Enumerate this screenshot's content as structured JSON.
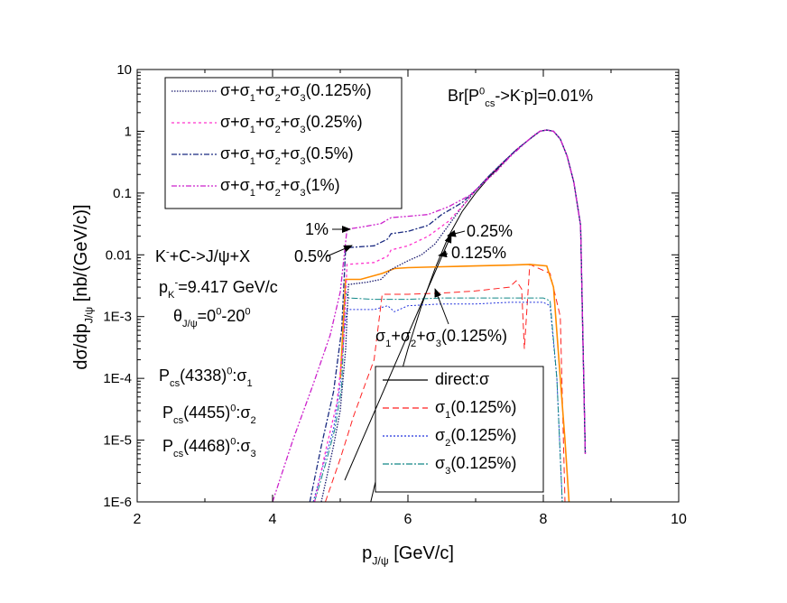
{
  "chart_data": {
    "type": "line",
    "y_scale": "log",
    "xlim": [
      2,
      10
    ],
    "ylim": [
      1e-06,
      10
    ],
    "x_ticks": [
      "2",
      "4",
      "6",
      "8",
      "10"
    ],
    "y_ticks": [
      "1E-6",
      "1E-5",
      "1E-4",
      "1E-3",
      "0.01",
      "0.1",
      "1",
      "10"
    ],
    "xlabel": {
      "main": "p",
      "sub": "J/ψ",
      "rest": " [GeV/c]"
    },
    "ylabel": {
      "main": "dσ/dp",
      "sub": "J/ψ",
      "rest": " [nb/(GeV/c)]"
    },
    "legend_top": [
      {
        "parts": [
          [
            "σ+σ",
            ""
          ],
          [
            "1",
            "sub"
          ],
          [
            "+σ",
            ""
          ],
          [
            "2",
            "sub"
          ],
          [
            "+σ",
            ""
          ],
          [
            "3",
            "sub"
          ],
          [
            "(0.125%)",
            ""
          ]
        ],
        "color": "#1a1a6e",
        "dash": "1.5,1.5"
      },
      {
        "parts": [
          [
            "σ+σ",
            ""
          ],
          [
            "1",
            "sub"
          ],
          [
            "+σ",
            ""
          ],
          [
            "2",
            "sub"
          ],
          [
            "+σ",
            ""
          ],
          [
            "3",
            "sub"
          ],
          [
            "(0.25%)",
            ""
          ]
        ],
        "color": "#ff33cc",
        "dash": "3,3"
      },
      {
        "parts": [
          [
            "σ+σ",
            ""
          ],
          [
            "1",
            "sub"
          ],
          [
            "+σ",
            ""
          ],
          [
            "2",
            "sub"
          ],
          [
            "+σ",
            ""
          ],
          [
            "3",
            "sub"
          ],
          [
            "(0.5%)",
            ""
          ]
        ],
        "color": "#1a2a80",
        "dash": "6,2,2,2"
      },
      {
        "parts": [
          [
            "σ+σ",
            ""
          ],
          [
            "1",
            "sub"
          ],
          [
            "+σ",
            ""
          ],
          [
            "2",
            "sub"
          ],
          [
            "+σ",
            ""
          ],
          [
            "3",
            "sub"
          ],
          [
            "(1%)",
            ""
          ]
        ],
        "color": "#cc22cc",
        "dash": "6,2,2,2,2,2"
      }
    ],
    "legend_bottom": [
      {
        "parts": [
          [
            "direct:σ",
            ""
          ]
        ],
        "color": "#000000",
        "dash": ""
      },
      {
        "parts": [
          [
            "σ",
            ""
          ],
          [
            "1",
            "sub"
          ],
          [
            "(0.125%)",
            ""
          ]
        ],
        "color": "#ff2222",
        "dash": "7,4"
      },
      {
        "parts": [
          [
            "σ",
            ""
          ],
          [
            "2",
            "sub"
          ],
          [
            "(0.125%)",
            ""
          ]
        ],
        "color": "#2233dd",
        "dash": "2,2"
      },
      {
        "parts": [
          [
            "σ",
            ""
          ],
          [
            "3",
            "sub"
          ],
          [
            "(0.125%)",
            ""
          ]
        ],
        "color": "#118888",
        "dash": "7,2,2,2"
      }
    ],
    "annotations": {
      "branching": [
        [
          "Br[P",
          ""
        ],
        [
          "0",
          "sup"
        ],
        [
          "cs",
          "sub"
        ],
        [
          "->K",
          ""
        ],
        [
          "-",
          "sup"
        ],
        [
          "p]=0.01%",
          ""
        ]
      ],
      "reaction": [
        [
          "K",
          ""
        ],
        [
          "-",
          "sup"
        ],
        [
          "+C->J/ψ+X",
          ""
        ]
      ],
      "momentum": [
        [
          "p",
          ""
        ],
        [
          "K",
          "sub"
        ],
        [
          "-",
          "sup"
        ],
        [
          "=9.417 GeV/c",
          ""
        ]
      ],
      "angle": [
        [
          "θ",
          ""
        ],
        [
          "J/ψ",
          "sub"
        ],
        [
          "=0",
          ""
        ],
        [
          "0",
          "sup"
        ],
        [
          "-20",
          ""
        ],
        [
          "0",
          "sup"
        ]
      ],
      "state1": [
        [
          "P",
          ""
        ],
        [
          "cs",
          "sub"
        ],
        [
          "(4338)",
          ""
        ],
        [
          "0",
          "sup"
        ],
        [
          ":σ",
          ""
        ],
        [
          "1",
          "sub"
        ]
      ],
      "state2": [
        [
          "P",
          ""
        ],
        [
          "cs",
          "sub"
        ],
        [
          "(4455)",
          ""
        ],
        [
          "0",
          "sup"
        ],
        [
          ":σ",
          ""
        ],
        [
          "2",
          "sub"
        ]
      ],
      "state3": [
        [
          "P",
          ""
        ],
        [
          "cs",
          "sub"
        ],
        [
          "(4468)",
          ""
        ],
        [
          "0",
          "sup"
        ],
        [
          ":σ",
          ""
        ],
        [
          "3",
          "sub"
        ]
      ],
      "label_1pct": "1%",
      "label_05pct": "0.5%",
      "label_025pct": "0.25%",
      "label_0125pct": "0.125%",
      "sum_label": [
        [
          "σ",
          ""
        ],
        [
          "1",
          "sub"
        ],
        [
          "+σ",
          ""
        ],
        [
          "2",
          "sub"
        ],
        [
          "+σ",
          ""
        ],
        [
          "3",
          "sub"
        ],
        [
          "(0.125%)",
          ""
        ]
      ]
    },
    "series": [
      {
        "name": "direct:σ",
        "color": "#000000",
        "dash": "",
        "width": 1.0,
        "points": [
          [
            5.45,
            1e-06
          ],
          [
            5.6,
            5e-06
          ],
          [
            5.8,
            5e-05
          ],
          [
            6.0,
            0.0003
          ],
          [
            6.2,
            0.0015
          ],
          [
            6.4,
            0.006
          ],
          [
            6.6,
            0.02
          ],
          [
            6.8,
            0.05
          ],
          [
            7.0,
            0.1
          ],
          [
            7.2,
            0.18
          ],
          [
            7.4,
            0.3
          ],
          [
            7.6,
            0.5
          ],
          [
            7.8,
            0.75
          ],
          [
            7.95,
            1.0
          ],
          [
            8.05,
            1.05
          ],
          [
            8.15,
            1.0
          ],
          [
            8.25,
            0.75
          ],
          [
            8.35,
            0.4
          ],
          [
            8.45,
            0.15
          ],
          [
            8.55,
            0.03
          ],
          [
            8.62,
            6e-06
          ]
        ]
      },
      {
        "name": "σ1(0.125%)",
        "color": "#ff2222",
        "dash": "7,4",
        "width": 1.0,
        "points": [
          [
            4.78,
            1e-06
          ],
          [
            5.0,
            5e-06
          ],
          [
            5.2,
            2.5e-05
          ],
          [
            5.4,
            0.0001
          ],
          [
            5.5,
            0.0002
          ],
          [
            5.62,
            0.0023
          ],
          [
            6.0,
            0.0023
          ],
          [
            6.5,
            0.0024
          ],
          [
            7.0,
            0.0026
          ],
          [
            7.5,
            0.003
          ],
          [
            7.6,
            0.0038
          ],
          [
            7.68,
            0.0028
          ],
          [
            7.72,
            0.0003
          ],
          [
            7.8,
            0.007
          ],
          [
            8.1,
            0.005
          ],
          [
            8.25,
            0.001
          ],
          [
            8.32,
            1e-06
          ]
        ]
      },
      {
        "name": "σ2(0.125%)",
        "color": "#2233dd",
        "dash": "2,2",
        "width": 1.0,
        "points": [
          [
            4.6,
            1e-06
          ],
          [
            4.75,
            4e-06
          ],
          [
            4.9,
            1.5e-05
          ],
          [
            5.0,
            8e-05
          ],
          [
            5.05,
            0.0005
          ],
          [
            5.1,
            0.0013
          ],
          [
            5.5,
            0.0013
          ],
          [
            5.7,
            0.0015
          ],
          [
            5.8,
            0.0012
          ],
          [
            6.0,
            0.0015
          ],
          [
            6.5,
            0.0016
          ],
          [
            7.0,
            0.0016
          ],
          [
            7.5,
            0.0017
          ],
          [
            8.0,
            0.0017
          ],
          [
            8.1,
            0.0015
          ],
          [
            8.2,
            0.0001
          ],
          [
            8.28,
            1e-06
          ]
        ]
      },
      {
        "name": "σ3(0.125%)",
        "color": "#118888",
        "dash": "7,2,2,2",
        "width": 1.0,
        "points": [
          [
            4.62,
            1e-06
          ],
          [
            4.78,
            4e-06
          ],
          [
            4.92,
            1.5e-05
          ],
          [
            5.02,
            7e-05
          ],
          [
            5.08,
            0.0025
          ],
          [
            5.12,
            0.002
          ],
          [
            5.5,
            0.0019
          ],
          [
            6.0,
            0.0019
          ],
          [
            6.5,
            0.002
          ],
          [
            7.0,
            0.002
          ],
          [
            7.5,
            0.002
          ],
          [
            8.0,
            0.002
          ],
          [
            8.1,
            0.0018
          ],
          [
            8.2,
            0.0001
          ],
          [
            8.28,
            1e-06
          ]
        ]
      },
      {
        "name": "σ1+σ2+σ3(0.125%)",
        "color": "#ff8c00",
        "dash": "",
        "width": 1.6,
        "points": [
          [
            5.0,
            0.0001
          ],
          [
            5.08,
            0.004
          ],
          [
            5.3,
            0.004
          ],
          [
            5.62,
            0.005
          ],
          [
            5.8,
            0.006
          ],
          [
            6.0,
            0.0062
          ],
          [
            6.5,
            0.0064
          ],
          [
            7.0,
            0.0066
          ],
          [
            7.5,
            0.0068
          ],
          [
            7.8,
            0.007
          ],
          [
            8.05,
            0.0066
          ],
          [
            8.15,
            0.003
          ],
          [
            8.25,
            0.0001
          ],
          [
            8.32,
            1e-05
          ],
          [
            8.38,
            1e-06
          ]
        ]
      },
      {
        "name": "σ+σ1+σ2+σ3(0.125%)",
        "color": "#1a1a6e",
        "dash": "1.5,1.5",
        "width": 1.3,
        "points": [
          [
            4.72,
            1e-06
          ],
          [
            4.9,
            8e-06
          ],
          [
            5.0,
            3e-05
          ],
          [
            5.08,
            0.0003
          ],
          [
            5.12,
            0.0033
          ],
          [
            5.4,
            0.0036
          ],
          [
            5.6,
            0.004
          ],
          [
            5.75,
            0.0058
          ],
          [
            6.0,
            0.008
          ],
          [
            6.2,
            0.01
          ],
          [
            6.4,
            0.015
          ],
          [
            6.6,
            0.03
          ],
          [
            6.8,
            0.06
          ],
          [
            7.0,
            0.11
          ],
          [
            7.2,
            0.19
          ],
          [
            7.4,
            0.31
          ],
          [
            7.6,
            0.5
          ],
          [
            7.8,
            0.75
          ],
          [
            7.95,
            1.0
          ],
          [
            8.05,
            1.05
          ],
          [
            8.15,
            1.0
          ],
          [
            8.25,
            0.75
          ],
          [
            8.35,
            0.4
          ],
          [
            8.45,
            0.15
          ],
          [
            8.55,
            0.03
          ],
          [
            8.62,
            6e-06
          ]
        ]
      },
      {
        "name": "σ+σ1+σ2+σ3(0.25%)",
        "color": "#ff33cc",
        "dash": "3,3",
        "width": 1.3,
        "points": [
          [
            4.62,
            1e-06
          ],
          [
            4.8,
            8e-06
          ],
          [
            4.95,
            4e-05
          ],
          [
            5.05,
            0.0004
          ],
          [
            5.1,
            0.007
          ],
          [
            5.5,
            0.0075
          ],
          [
            5.7,
            0.0095
          ],
          [
            5.75,
            0.012
          ],
          [
            6.0,
            0.014
          ],
          [
            6.3,
            0.02
          ],
          [
            6.6,
            0.035
          ],
          [
            6.8,
            0.06
          ],
          [
            7.0,
            0.11
          ],
          [
            7.2,
            0.19
          ],
          [
            7.4,
            0.31
          ],
          [
            7.6,
            0.5
          ],
          [
            7.8,
            0.75
          ],
          [
            7.95,
            1.0
          ],
          [
            8.05,
            1.05
          ],
          [
            8.15,
            1.0
          ],
          [
            8.25,
            0.75
          ],
          [
            8.35,
            0.4
          ],
          [
            8.45,
            0.15
          ],
          [
            8.55,
            0.03
          ],
          [
            8.62,
            6e-06
          ]
        ]
      },
      {
        "name": "σ+σ1+σ2+σ3(0.5%)",
        "color": "#1a2a80",
        "dash": "6,2,2,2",
        "width": 1.3,
        "points": [
          [
            4.55,
            1e-06
          ],
          [
            4.72,
            8e-06
          ],
          [
            4.9,
            6e-05
          ],
          [
            5.02,
            0.0006
          ],
          [
            5.08,
            0.013
          ],
          [
            5.5,
            0.014
          ],
          [
            5.7,
            0.018
          ],
          [
            5.75,
            0.022
          ],
          [
            6.0,
            0.024
          ],
          [
            6.3,
            0.03
          ],
          [
            6.5,
            0.045
          ],
          [
            6.8,
            0.07
          ],
          [
            7.0,
            0.11
          ],
          [
            7.2,
            0.19
          ],
          [
            7.4,
            0.31
          ],
          [
            7.6,
            0.5
          ],
          [
            7.8,
            0.75
          ],
          [
            7.95,
            1.0
          ],
          [
            8.05,
            1.05
          ],
          [
            8.15,
            1.0
          ],
          [
            8.25,
            0.75
          ],
          [
            8.35,
            0.4
          ],
          [
            8.45,
            0.15
          ],
          [
            8.55,
            0.03
          ],
          [
            8.62,
            6e-06
          ]
        ]
      },
      {
        "name": "σ+σ1+σ2+σ3(1%)",
        "color": "#cc22cc",
        "dash": "6,2,2,2,2,2",
        "width": 1.3,
        "points": [
          [
            4.0,
            1e-06
          ],
          [
            4.3,
            1e-05
          ],
          [
            4.6,
            8e-05
          ],
          [
            4.85,
            0.0005
          ],
          [
            5.0,
            0.0025
          ],
          [
            5.1,
            0.026
          ],
          [
            5.3,
            0.028
          ],
          [
            5.6,
            0.032
          ],
          [
            5.75,
            0.04
          ],
          [
            6.0,
            0.042
          ],
          [
            6.3,
            0.045
          ],
          [
            6.6,
            0.06
          ],
          [
            6.9,
            0.09
          ],
          [
            7.1,
            0.14
          ],
          [
            7.3,
            0.22
          ],
          [
            7.5,
            0.38
          ],
          [
            7.7,
            0.6
          ],
          [
            7.85,
            0.85
          ],
          [
            7.95,
            1.0
          ],
          [
            8.05,
            1.05
          ],
          [
            8.15,
            1.0
          ],
          [
            8.25,
            0.75
          ],
          [
            8.35,
            0.4
          ],
          [
            8.45,
            0.15
          ],
          [
            8.55,
            0.03
          ],
          [
            8.62,
            6e-06
          ]
        ]
      }
    ]
  }
}
